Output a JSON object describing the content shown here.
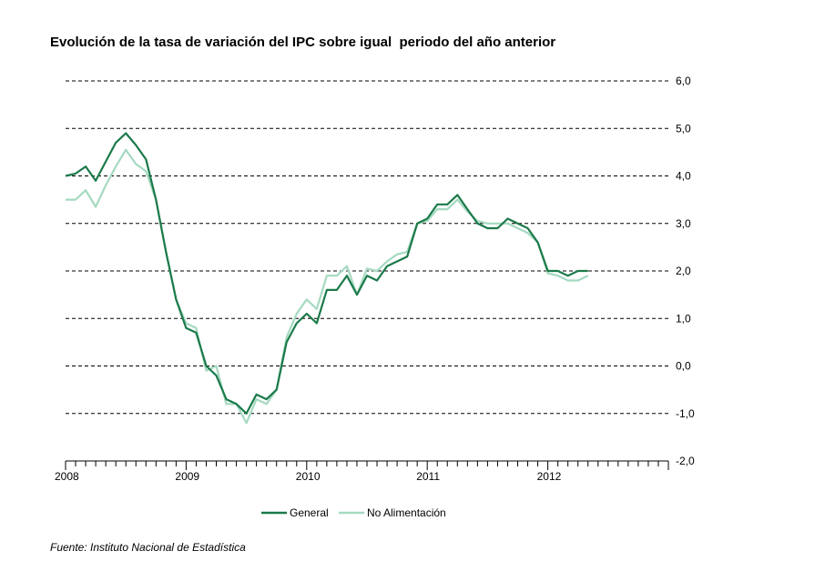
{
  "chart_data": {
    "type": "line",
    "title": "Evolución de la tasa de variación del IPC sobre igual  periodo del año anterior",
    "xlabel": "",
    "ylabel": "",
    "x_tick_labels": [
      "2008",
      "2009",
      "2010",
      "2011",
      "2012"
    ],
    "x_start": "2008-01",
    "x_range_months": [
      0,
      60
    ],
    "ylim": [
      -2.0,
      6.0
    ],
    "y_ticks": [
      -2.0,
      -1.0,
      0.0,
      1.0,
      2.0,
      3.0,
      4.0,
      5.0,
      6.0
    ],
    "y_tick_labels": [
      "-2,0",
      "-1,0",
      "0,0",
      "1,0",
      "2,0",
      "3,0",
      "4,0",
      "5,0",
      "6,0"
    ],
    "y_axis_side": "right",
    "grid": "horizontal dashed",
    "legend_position": "bottom",
    "series": [
      {
        "name": "General",
        "color": "#1b7a4a",
        "values": [
          4.0,
          4.05,
          4.2,
          3.9,
          4.3,
          4.7,
          4.9,
          4.65,
          4.35,
          3.5,
          2.4,
          1.4,
          0.8,
          0.7,
          0.0,
          -0.2,
          -0.7,
          -0.8,
          -1.0,
          -0.6,
          -0.7,
          -0.5,
          0.5,
          0.9,
          1.1,
          0.9,
          1.6,
          1.6,
          1.9,
          1.5,
          1.9,
          1.8,
          2.1,
          2.2,
          2.3,
          3.0,
          3.1,
          3.4,
          3.4,
          3.6,
          3.3,
          3.0,
          2.9,
          2.9,
          3.1,
          3.0,
          2.9,
          2.6,
          2.0,
          2.0,
          1.9,
          2.0,
          2.0
        ]
      },
      {
        "name": "No Alimentación",
        "color": "#a5d9c0",
        "values": [
          3.5,
          3.5,
          3.7,
          3.35,
          3.8,
          4.2,
          4.55,
          4.25,
          4.1,
          3.5,
          2.4,
          1.4,
          0.9,
          0.8,
          -0.1,
          0.0,
          -0.8,
          -0.8,
          -1.2,
          -0.7,
          -0.8,
          -0.5,
          0.6,
          1.1,
          1.4,
          1.2,
          1.9,
          1.9,
          2.1,
          1.5,
          2.05,
          2.0,
          2.2,
          2.35,
          2.4,
          3.0,
          3.05,
          3.3,
          3.3,
          3.5,
          3.25,
          3.05,
          3.0,
          3.0,
          3.0,
          2.9,
          2.8,
          2.6,
          1.95,
          1.9,
          1.8,
          1.8,
          1.9
        ]
      }
    ]
  },
  "source": "Fuente: Instituto Nacional de Estadística"
}
